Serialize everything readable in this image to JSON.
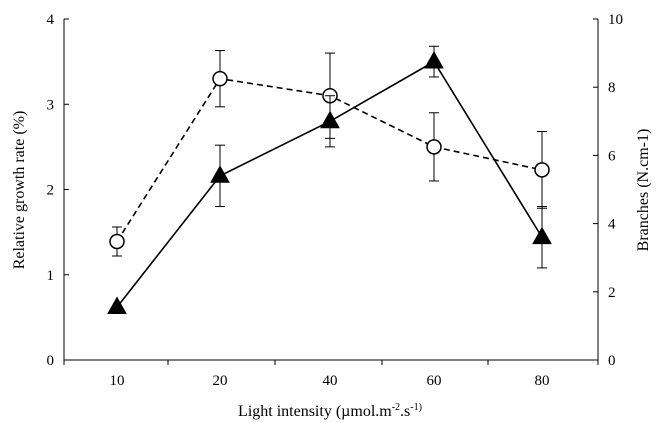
{
  "chart_data": {
    "type": "line",
    "categories": [
      "10",
      "20",
      "40",
      "60",
      "80"
    ],
    "xlabel": "Light intensity (µmol.m⁻².s⁻¹)",
    "xlabel_parts": {
      "main": "Light intensity (µmol.m",
      "sup1": "-2",
      "mid": ".s",
      "sup2": "-1)"
    },
    "ylabel_left": "Relative growth rate (%)",
    "ylabel_right": "Branches (N.cm-1)",
    "ylim_left": [
      0,
      4
    ],
    "yticks_left": [
      "0",
      "1",
      "2",
      "3",
      "4"
    ],
    "ylim_right": [
      0,
      10
    ],
    "yticks_right": [
      "0",
      "2",
      "4",
      "6",
      "8",
      "10"
    ],
    "grid": false,
    "legend": "none",
    "series": [
      {
        "axis": "left",
        "marker": "open-circle",
        "line": "dashed",
        "values": [
          1.39,
          3.3,
          3.1,
          2.5,
          2.23
        ],
        "errors": [
          0.17,
          0.33,
          0.5,
          0.4,
          0.45
        ]
      },
      {
        "axis": "right",
        "marker": "filled-triangle",
        "line": "solid",
        "values": [
          1.55,
          5.4,
          7.0,
          8.75,
          3.6
        ],
        "errors": [
          0.0,
          0.9,
          0.75,
          0.45,
          0.9
        ]
      }
    ]
  }
}
